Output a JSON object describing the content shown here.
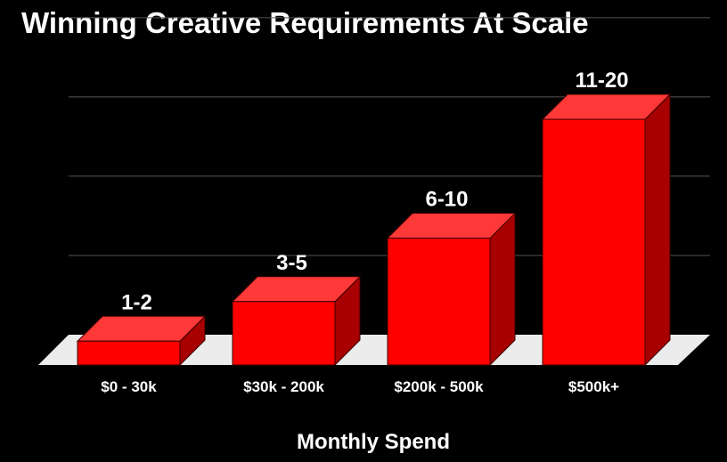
{
  "chart_data": {
    "type": "bar",
    "title": "Winning Creative Requirements At Scale",
    "xlabel": "Monthly Spend",
    "ylabel": "",
    "categories": [
      "$0 - 30k",
      "$30k - 200k",
      "$200k - 500k",
      "$500k+"
    ],
    "values": [
      1.5,
      4,
      8,
      15.5
    ],
    "data_labels": [
      "1-2",
      "3-5",
      "6-10",
      "11-20"
    ],
    "ylim": [
      0,
      20
    ],
    "grid": true,
    "legend": "none",
    "style": "3d-columns"
  },
  "colors": {
    "background": "#000000",
    "bar_front": "#ff0000",
    "bar_top": "#ff3838",
    "bar_side": "#a80000",
    "floor": "#ececec",
    "gridline": "#555555",
    "text": "#ffffff"
  }
}
